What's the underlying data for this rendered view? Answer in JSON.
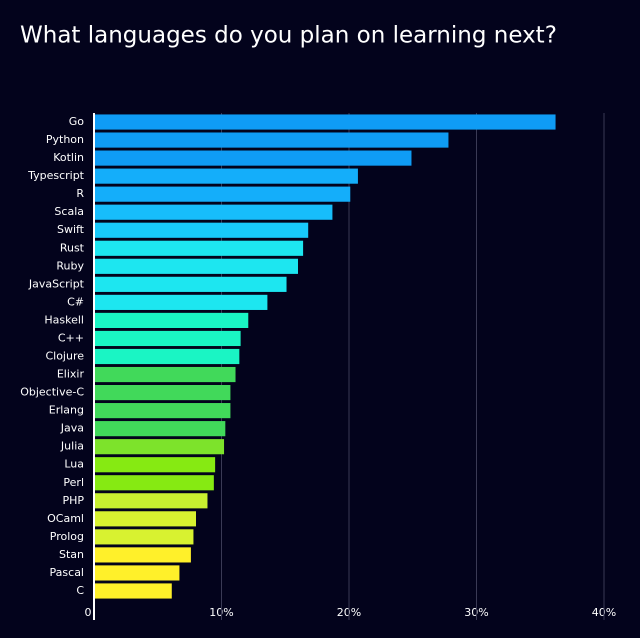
{
  "chart_data": {
    "type": "hbar",
    "title": "What languages do you plan on learning next?",
    "categories": [
      "Go",
      "Python",
      "Kotlin",
      "Typescript",
      "R",
      "Scala",
      "Swift",
      "Rust",
      "Ruby",
      "JavaScript",
      "C#",
      "Haskell",
      "C++",
      "Clojure",
      "Elixir",
      "Objective-C",
      "Erlang",
      "Java",
      "Julia",
      "Lua",
      "Perl",
      "PHP",
      "OCaml",
      "Prolog",
      "Stan",
      "Pascal",
      "C"
    ],
    "values": [
      36.2,
      27.8,
      24.9,
      20.7,
      20.1,
      18.7,
      16.8,
      16.4,
      16.0,
      15.1,
      13.6,
      12.1,
      11.5,
      11.4,
      11.1,
      10.7,
      10.7,
      10.3,
      10.2,
      9.5,
      9.4,
      8.9,
      8.0,
      7.8,
      7.6,
      6.7,
      6.1
    ],
    "colors": [
      "#0f9cf5",
      "#0f9cf5",
      "#0f9cf5",
      "#14aefa",
      "#14aefa",
      "#17bdfb",
      "#18c9fb",
      "#1de6f0",
      "#1de6f0",
      "#1de6f0",
      "#1de6f0",
      "#1af5c4",
      "#1af5c4",
      "#1af5c4",
      "#41d95a",
      "#41d95a",
      "#41d95a",
      "#41d95a",
      "#7de32b",
      "#86ea12",
      "#86ea12",
      "#c8f030",
      "#d8f230",
      "#d8f230",
      "#fff02a",
      "#fff02a",
      "#fff02a"
    ],
    "xlim": [
      0,
      40
    ],
    "xticks": [
      0,
      {
        "value": 10,
        "label": "10%"
      },
      {
        "value": 20,
        "label": "20%"
      },
      {
        "value": 30,
        "label": "30%"
      },
      {
        "value": 40,
        "label": "40%"
      }
    ],
    "grid": true
  }
}
